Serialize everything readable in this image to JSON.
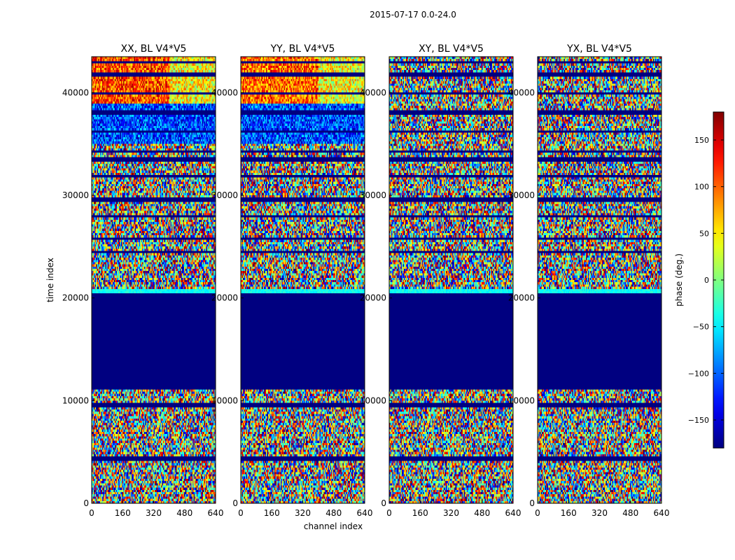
{
  "figure": {
    "suptitle": "2015-07-17 0.0-24.0"
  },
  "chart_data": {
    "type": "heatmap",
    "colormap": "jet",
    "xlabel": "channel index",
    "ylabel": "time index",
    "xlim": [
      0,
      640
    ],
    "ylim": [
      0,
      43500
    ],
    "xticks": [
      0,
      160,
      320,
      480,
      640
    ],
    "yticks": [
      0,
      10000,
      20000,
      30000,
      40000
    ],
    "panels": [
      {
        "title": "XX, BL V4*V5"
      },
      {
        "title": "YY, BL V4*V5"
      },
      {
        "title": "XY, BL V4*V5"
      },
      {
        "title": "YX, BL V4*V5"
      }
    ],
    "flagged_range": [
      11200,
      20500
    ],
    "flagged_value": -180,
    "colorbar": {
      "label": "phase (deg.)",
      "range": [
        -180,
        180
      ],
      "ticks": [
        -150,
        -100,
        -50,
        0,
        50,
        100,
        150
      ]
    }
  }
}
